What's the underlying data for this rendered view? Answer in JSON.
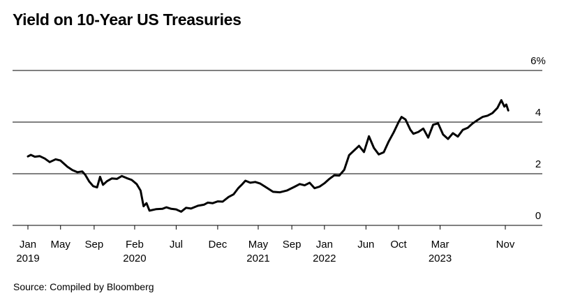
{
  "chart_data": {
    "type": "line",
    "title": "Yield on 10-Year US Treasuries",
    "source": "Source: Compiled by Bloomberg",
    "xlabel": "",
    "ylabel": "",
    "ylim": [
      0,
      6
    ],
    "y_ticks": [
      {
        "value": 0,
        "label": "0"
      },
      {
        "value": 2,
        "label": "2"
      },
      {
        "value": 4,
        "label": "4"
      },
      {
        "value": 6,
        "label": "6%"
      }
    ],
    "x_ticks": [
      {
        "t": 2019.0,
        "label": "Jan",
        "year": "2019"
      },
      {
        "t": 2019.33,
        "label": "May",
        "year": ""
      },
      {
        "t": 2019.67,
        "label": "Sep",
        "year": ""
      },
      {
        "t": 2020.08,
        "label": "Feb",
        "year": "2020"
      },
      {
        "t": 2020.5,
        "label": "Jul",
        "year": ""
      },
      {
        "t": 2020.92,
        "label": "Dec",
        "year": ""
      },
      {
        "t": 2021.33,
        "label": "May",
        "year": "2021"
      },
      {
        "t": 2021.67,
        "label": "Sep",
        "year": ""
      },
      {
        "t": 2022.0,
        "label": "Jan",
        "year": "2022"
      },
      {
        "t": 2022.42,
        "label": "Jun",
        "year": ""
      },
      {
        "t": 2022.75,
        "label": "Oct",
        "year": ""
      },
      {
        "t": 2023.17,
        "label": "Mar",
        "year": "2023"
      },
      {
        "t": 2023.83,
        "label": "Nov",
        "year": ""
      }
    ],
    "series": [
      {
        "name": "10-Year US Treasury Yield",
        "points": [
          [
            2019.0,
            2.67
          ],
          [
            2019.03,
            2.73
          ],
          [
            2019.07,
            2.66
          ],
          [
            2019.12,
            2.68
          ],
          [
            2019.17,
            2.59
          ],
          [
            2019.22,
            2.45
          ],
          [
            2019.28,
            2.56
          ],
          [
            2019.33,
            2.51
          ],
          [
            2019.4,
            2.27
          ],
          [
            2019.45,
            2.14
          ],
          [
            2019.5,
            2.06
          ],
          [
            2019.55,
            2.09
          ],
          [
            2019.58,
            1.96
          ],
          [
            2019.62,
            1.7
          ],
          [
            2019.66,
            1.52
          ],
          [
            2019.7,
            1.47
          ],
          [
            2019.73,
            1.88
          ],
          [
            2019.76,
            1.57
          ],
          [
            2019.8,
            1.71
          ],
          [
            2019.85,
            1.82
          ],
          [
            2019.9,
            1.8
          ],
          [
            2019.95,
            1.91
          ],
          [
            2020.0,
            1.83
          ],
          [
            2020.05,
            1.76
          ],
          [
            2020.1,
            1.6
          ],
          [
            2020.14,
            1.35
          ],
          [
            2020.17,
            0.74
          ],
          [
            2020.2,
            0.86
          ],
          [
            2020.23,
            0.57
          ],
          [
            2020.3,
            0.63
          ],
          [
            2020.36,
            0.64
          ],
          [
            2020.4,
            0.7
          ],
          [
            2020.45,
            0.64
          ],
          [
            2020.5,
            0.62
          ],
          [
            2020.55,
            0.53
          ],
          [
            2020.6,
            0.68
          ],
          [
            2020.65,
            0.65
          ],
          [
            2020.72,
            0.76
          ],
          [
            2020.78,
            0.8
          ],
          [
            2020.82,
            0.88
          ],
          [
            2020.87,
            0.86
          ],
          [
            2020.92,
            0.93
          ],
          [
            2020.97,
            0.92
          ],
          [
            2021.03,
            1.1
          ],
          [
            2021.08,
            1.2
          ],
          [
            2021.13,
            1.45
          ],
          [
            2021.17,
            1.6
          ],
          [
            2021.2,
            1.73
          ],
          [
            2021.25,
            1.65
          ],
          [
            2021.3,
            1.68
          ],
          [
            2021.35,
            1.62
          ],
          [
            2021.42,
            1.45
          ],
          [
            2021.48,
            1.3
          ],
          [
            2021.55,
            1.28
          ],
          [
            2021.62,
            1.35
          ],
          [
            2021.7,
            1.5
          ],
          [
            2021.75,
            1.6
          ],
          [
            2021.8,
            1.55
          ],
          [
            2021.85,
            1.65
          ],
          [
            2021.9,
            1.44
          ],
          [
            2021.95,
            1.5
          ],
          [
            2022.0,
            1.63
          ],
          [
            2022.05,
            1.8
          ],
          [
            2022.1,
            1.94
          ],
          [
            2022.15,
            1.93
          ],
          [
            2022.2,
            2.15
          ],
          [
            2022.25,
            2.72
          ],
          [
            2022.3,
            2.9
          ],
          [
            2022.35,
            3.08
          ],
          [
            2022.4,
            2.84
          ],
          [
            2022.45,
            3.45
          ],
          [
            2022.5,
            3.0
          ],
          [
            2022.55,
            2.75
          ],
          [
            2022.6,
            2.83
          ],
          [
            2022.65,
            3.25
          ],
          [
            2022.7,
            3.6
          ],
          [
            2022.75,
            4.0
          ],
          [
            2022.78,
            4.2
          ],
          [
            2022.82,
            4.1
          ],
          [
            2022.87,
            3.7
          ],
          [
            2022.9,
            3.55
          ],
          [
            2022.95,
            3.62
          ],
          [
            2023.0,
            3.75
          ],
          [
            2023.05,
            3.4
          ],
          [
            2023.1,
            3.9
          ],
          [
            2023.15,
            3.95
          ],
          [
            2023.2,
            3.52
          ],
          [
            2023.25,
            3.35
          ],
          [
            2023.3,
            3.57
          ],
          [
            2023.35,
            3.44
          ],
          [
            2023.4,
            3.7
          ],
          [
            2023.45,
            3.78
          ],
          [
            2023.5,
            3.95
          ],
          [
            2023.55,
            4.08
          ],
          [
            2023.6,
            4.2
          ],
          [
            2023.65,
            4.25
          ],
          [
            2023.7,
            4.35
          ],
          [
            2023.75,
            4.55
          ],
          [
            2023.79,
            4.85
          ],
          [
            2023.82,
            4.6
          ],
          [
            2023.84,
            4.68
          ],
          [
            2023.86,
            4.45
          ]
        ]
      }
    ]
  }
}
